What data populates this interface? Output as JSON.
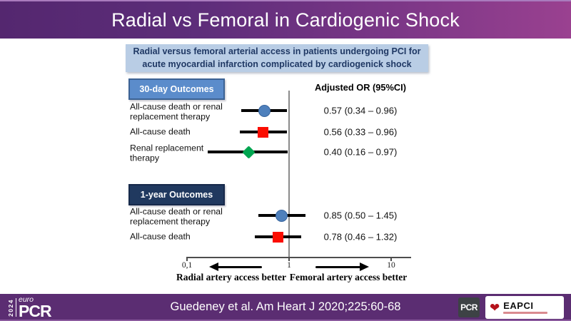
{
  "header": {
    "title": "Radial vs Femoral in Cardiogenic Shock"
  },
  "study": {
    "title": "Radial versus femoral arterial access in patients undergoing PCI for acute myocardial infarction complicated by cardiogenick shock"
  },
  "chart_data": {
    "type": "forest",
    "or_header": "Adjusted OR (95%CI)",
    "axis": {
      "scale": "log",
      "min": 0.1,
      "max": 10,
      "tick_values": [
        0.1,
        1,
        10
      ],
      "ticks": [
        "0,1",
        "1",
        "10"
      ],
      "reference_value": 1
    },
    "groups": [
      {
        "label": "30-day Outcomes",
        "style": "light",
        "rows": [
          {
            "label": "All-cause death or renal\nreplacement therapy",
            "or": 0.57,
            "low": 0.34,
            "high": 0.96,
            "text": "0.57 (0.34 – 0.96)",
            "marker": "circle",
            "color": "#4e80bc"
          },
          {
            "label": "All-cause death",
            "or": 0.56,
            "low": 0.33,
            "high": 0.96,
            "text": "0.56 (0.33 – 0.96)",
            "marker": "square",
            "color": "#fb0d00"
          },
          {
            "label": "Renal replacement\ntherapy",
            "or": 0.4,
            "low": 0.16,
            "high": 0.97,
            "text": "0.40 (0.16 – 0.97)",
            "marker": "diamond",
            "color": "#00a550"
          }
        ]
      },
      {
        "label": "1-year Outcomes",
        "style": "dark",
        "rows": [
          {
            "label": "All-cause death or renal\nreplacement therapy",
            "or": 0.85,
            "low": 0.5,
            "high": 1.45,
            "text": "0.85 (0.50 – 1.45)",
            "marker": "circle",
            "color": "#4e80bc"
          },
          {
            "label": "All-cause death",
            "or": 0.78,
            "low": 0.46,
            "high": 1.32,
            "text": "0.78 (0.46 – 1.32)",
            "marker": "square",
            "color": "#fb0d00"
          }
        ]
      }
    ],
    "direction_labels": {
      "left": "Radial artery access better",
      "right": "Femoral artery access better"
    },
    "legend_position": "none",
    "grid": false
  },
  "footer": {
    "citation": "Guedeney et al. Am Heart J 2020;225:60-68",
    "europcr_year": "2024",
    "europcr_euro": "euro",
    "europcr_pcr": "PCR",
    "pcr_badge": "PCR",
    "eapci_label": "EAPCI"
  },
  "colors": {
    "header_gradient_left": "#54276f",
    "header_gradient_right": "#9a4190",
    "footer_purple": "#5b2d72",
    "study_box_fill": "#b9cde5",
    "study_box_text": "#1f3864",
    "group_light_fill": "#5b8ccb",
    "group_dark_fill": "#20395f",
    "marker_circle": "#4e80bc",
    "marker_square": "#fb0d00",
    "marker_diamond": "#00a550",
    "reference_line": "#8a8a8a"
  }
}
